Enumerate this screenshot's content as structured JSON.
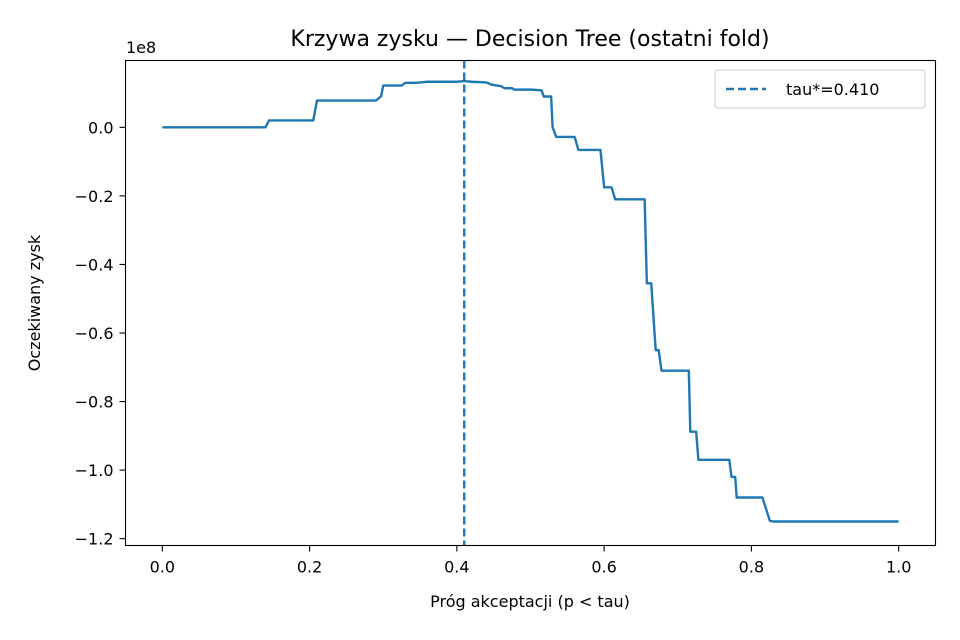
{
  "chart_data": {
    "type": "line",
    "title": "Krzywa zysku — Decision Tree (ostatni fold)",
    "xlabel": "Próg akceptacji (p < tau)",
    "ylabel": "Oczekiwany zysk",
    "y_scale_label": "1e8",
    "xlim": [
      -0.05,
      1.05
    ],
    "ylim": [
      -1.22,
      0.195
    ],
    "x_ticks": [
      0.0,
      0.2,
      0.4,
      0.6,
      0.8,
      1.0
    ],
    "x_tick_labels": [
      "0.0",
      "0.2",
      "0.4",
      "0.6",
      "0.8",
      "1.0"
    ],
    "y_ticks": [
      0.0,
      -0.2,
      -0.4,
      -0.6,
      -0.8,
      -1.0,
      -1.2
    ],
    "y_tick_labels": [
      "0.0",
      "−0.2",
      "−0.4",
      "−0.6",
      "−0.8",
      "−1.0",
      "−1.2"
    ],
    "grid": false,
    "legend": {
      "placement": "top-right",
      "entries": [
        {
          "label": "tau*=0.410",
          "style": "dashed",
          "color": "#1f77b4"
        }
      ]
    },
    "threshold": {
      "x": 0.41,
      "label": "tau*=0.410",
      "color": "#1f77b4"
    },
    "series": [
      {
        "color": "#1f77b4",
        "unit_multiplier": 100000000,
        "x": [
          0.0,
          0.14,
          0.145,
          0.205,
          0.21,
          0.29,
          0.297,
          0.3,
          0.325,
          0.33,
          0.345,
          0.36,
          0.4,
          0.41,
          0.42,
          0.44,
          0.448,
          0.46,
          0.465,
          0.475,
          0.478,
          0.5,
          0.515,
          0.518,
          0.528,
          0.53,
          0.535,
          0.56,
          0.565,
          0.595,
          0.6,
          0.61,
          0.615,
          0.655,
          0.658,
          0.664,
          0.67,
          0.674,
          0.678,
          0.715,
          0.717,
          0.725,
          0.728,
          0.77,
          0.773,
          0.778,
          0.78,
          0.8,
          0.815,
          0.825,
          0.83,
          1.0
        ],
        "values": [
          0.0,
          0.0,
          0.02,
          0.02,
          0.078,
          0.078,
          0.09,
          0.122,
          0.122,
          0.13,
          0.13,
          0.133,
          0.133,
          0.135,
          0.133,
          0.131,
          0.124,
          0.12,
          0.114,
          0.114,
          0.11,
          0.11,
          0.108,
          0.09,
          0.09,
          0.0,
          -0.028,
          -0.028,
          -0.066,
          -0.066,
          -0.175,
          -0.175,
          -0.21,
          -0.21,
          -0.455,
          -0.455,
          -0.65,
          -0.65,
          -0.71,
          -0.71,
          -0.888,
          -0.888,
          -0.97,
          -0.97,
          -1.02,
          -1.02,
          -1.08,
          -1.08,
          -1.08,
          -1.148,
          -1.15,
          -1.15
        ]
      }
    ]
  }
}
